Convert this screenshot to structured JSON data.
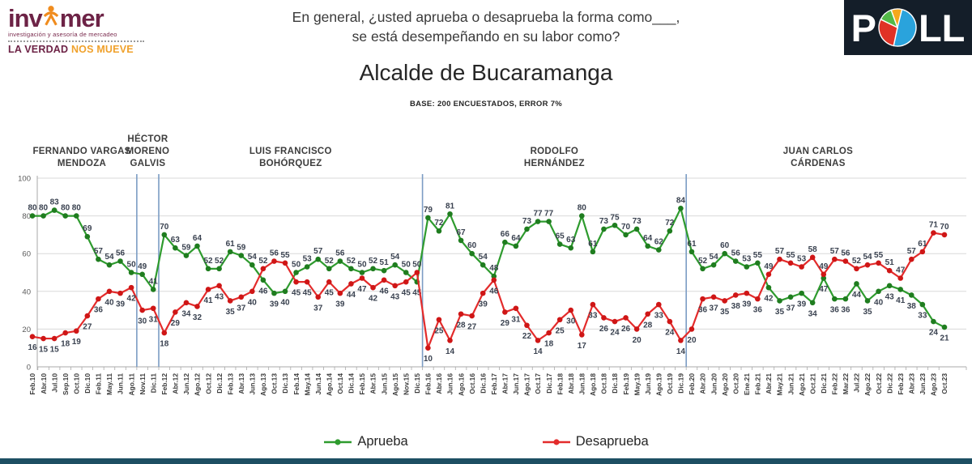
{
  "header": {
    "invamer_logo": {
      "brand_left": "inv",
      "brand_right": "mer",
      "tagline": "investigación y asesoría de mercadeo",
      "slogan_primary": "LA VERDAD",
      "slogan_accent": "NOS MUEVE",
      "brand_color": "#6d2346",
      "accent_color": "#f08c1e"
    },
    "question_line1": "En general, ¿usted aprueba o desaprueba la forma como___,",
    "question_line2": "se está desempeñando en su labor como?",
    "poll_logo": {
      "letter_p": "P",
      "letters_ll": "LL",
      "background": "#141e29",
      "pie_colors": {
        "blue": "#2aa3dc",
        "red": "#e03226",
        "green": "#53b948",
        "orange": "#f6a81c"
      }
    }
  },
  "title": "Alcalde de Bucaramanga",
  "base_note": "BASE: 200 ENCUESTADOS, ERROR 7%",
  "mayors": [
    {
      "name": "FERNANDO VARGAS MENDOZA",
      "lines": [
        "FERNANDO VARGAS",
        "MENDOZA"
      ],
      "start_index": 0,
      "end_index": 9
    },
    {
      "name": "HÉCTOR MORENO GALVIS",
      "lines": [
        "HÉCTOR",
        "MORENO",
        "GALVIS"
      ],
      "start_index": 10,
      "end_index": 11
    },
    {
      "name": "LUIS FRANCISCO BOHÓRQUEZ",
      "lines": [
        "LUIS FRANCISCO",
        "BOHÓRQUEZ"
      ],
      "start_index": 12,
      "end_index": 35
    },
    {
      "name": "RODOLFO HERNÁNDEZ",
      "lines": [
        "RODOLFO",
        "HERNÁNDEZ"
      ],
      "start_index": 36,
      "end_index": 59
    },
    {
      "name": "JUAN CARLOS CÁRDENAS",
      "lines": [
        "JUAN CARLOS",
        "CÁRDENAS"
      ],
      "start_index": 60,
      "end_index": 83
    }
  ],
  "chart_data": {
    "type": "line",
    "title": "Alcalde de Bucaramanga",
    "x": [
      "Feb.10",
      "Abr.10",
      "Jul.10",
      "Sep.10",
      "Oct.10",
      "Dic.10",
      "Feb.11",
      "May.11",
      "Jun.11",
      "Ago.11",
      "Nov.11",
      "Dic.11",
      "Feb.12",
      "Abr.12",
      "Jun.12",
      "Ago.12",
      "Oct.12",
      "Dic.12",
      "Feb.13",
      "Abr.13",
      "Jun.13",
      "Ago.13",
      "Oct.13",
      "Dic.13",
      "Feb.14",
      "May.14",
      "Jun.14",
      "Ago.14",
      "Oct.14",
      "Dic.14",
      "Feb.15",
      "Abr.15",
      "Jun.15",
      "Ago.15",
      "Nov.15",
      "Dic.15",
      "Feb.16",
      "Abr.16",
      "Jun.16",
      "Ago.16",
      "Oct.16",
      "Dic.16",
      "Feb.17",
      "Abr.17",
      "Jun.17",
      "Ago.17",
      "Oct.17",
      "Dic.17",
      "Feb.18",
      "Abr.18",
      "Jun.18",
      "Ago.18",
      "Oct.18",
      "Dic.18",
      "Feb.19",
      "May.19",
      "Jun.19",
      "Ago.19",
      "Oct.19",
      "Dic.19",
      "Feb.20",
      "Abr.20",
      "Jun.20",
      "Ago.20",
      "Oct.20",
      "Ene.21",
      "Feb.21",
      "Abr.21",
      "May.21",
      "Jun.21",
      "Ago.21",
      "Oct.21",
      "Dic.21",
      "Feb.22",
      "Mar.22",
      "Jul.22",
      "Ago.22",
      "Oct.22",
      "Dic.22",
      "Feb.23",
      "Abr.23",
      "Jun.23",
      "Ago.23",
      "Oct.23"
    ],
    "series": [
      {
        "name": "Aprueba",
        "color": "#2e9b2e",
        "point_color": "#1f7d1f",
        "values": [
          80,
          80,
          83,
          80,
          80,
          69,
          57,
          54,
          56,
          50,
          49,
          41,
          70,
          63,
          59,
          64,
          52,
          52,
          61,
          59,
          54,
          46,
          39,
          40,
          50,
          53,
          57,
          52,
          56,
          52,
          50,
          52,
          51,
          54,
          50,
          45,
          79,
          72,
          81,
          67,
          60,
          54,
          48,
          66,
          64,
          73,
          77,
          77,
          65,
          63,
          80,
          61,
          73,
          75,
          70,
          73,
          64,
          62,
          72,
          84,
          61,
          52,
          54,
          60,
          56,
          53,
          55,
          42,
          35,
          37,
          39,
          34,
          47,
          36,
          36,
          44,
          35,
          40,
          43,
          41,
          38,
          33,
          24,
          21
        ]
      },
      {
        "name": "Desaprueba",
        "color": "#e32b2b",
        "point_color": "#cf1616",
        "values": [
          16,
          15,
          15,
          18,
          19,
          27,
          36,
          40,
          39,
          42,
          30,
          31,
          18,
          29,
          34,
          32,
          41,
          43,
          35,
          37,
          40,
          52,
          56,
          55,
          45,
          45,
          37,
          45,
          39,
          44,
          47,
          42,
          46,
          43,
          45,
          50,
          10,
          25,
          14,
          28,
          27,
          39,
          46,
          29,
          31,
          22,
          14,
          18,
          25,
          30,
          17,
          33,
          26,
          24,
          26,
          20,
          28,
          33,
          24,
          14,
          20,
          36,
          37,
          35,
          38,
          39,
          36,
          49,
          57,
          55,
          53,
          58,
          49,
          57,
          56,
          52,
          54,
          55,
          51,
          47,
          57,
          61,
          71,
          70
        ]
      }
    ],
    "ylim": [
      0,
      100
    ],
    "yticks": [
      0,
      20,
      40,
      60,
      80,
      100
    ],
    "grid": true,
    "show_point_labels": true,
    "separator_after_index": [
      9,
      11,
      35,
      59
    ],
    "separator_color": "#7b9cc4",
    "legend_position": "bottom"
  },
  "legend": {
    "items": [
      {
        "label": "Aprueba",
        "color": "#2e9b2e"
      },
      {
        "label": "Desaprueba",
        "color": "#e32b2b"
      }
    ]
  },
  "footer_bar_color": "#1d4f63"
}
